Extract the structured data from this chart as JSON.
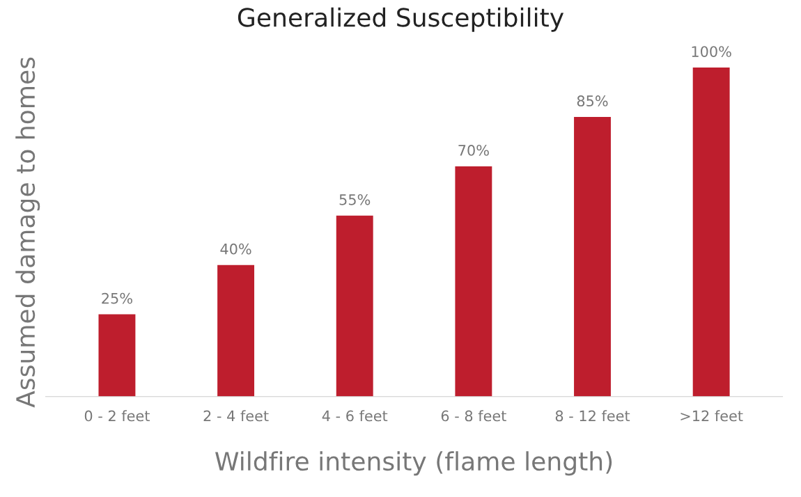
{
  "chart_data": {
    "type": "bar",
    "title": "Generalized Susceptibility",
    "xlabel": "Wildfire intensity (flame length)",
    "ylabel": "Assumed damage to homes",
    "categories": [
      "0 - 2 feet",
      "2 - 4 feet",
      "4 - 6 feet",
      "6 - 8 feet",
      "8 - 12 feet",
      ">12 feet"
    ],
    "values": [
      25,
      40,
      55,
      70,
      85,
      100
    ],
    "color": "#be1e2d",
    "value_labels": [
      "25%",
      "40%",
      "55%",
      "70%",
      "85%",
      "100%"
    ],
    "tick_labels": "x",
    "grid": false,
    "legend": false
  }
}
